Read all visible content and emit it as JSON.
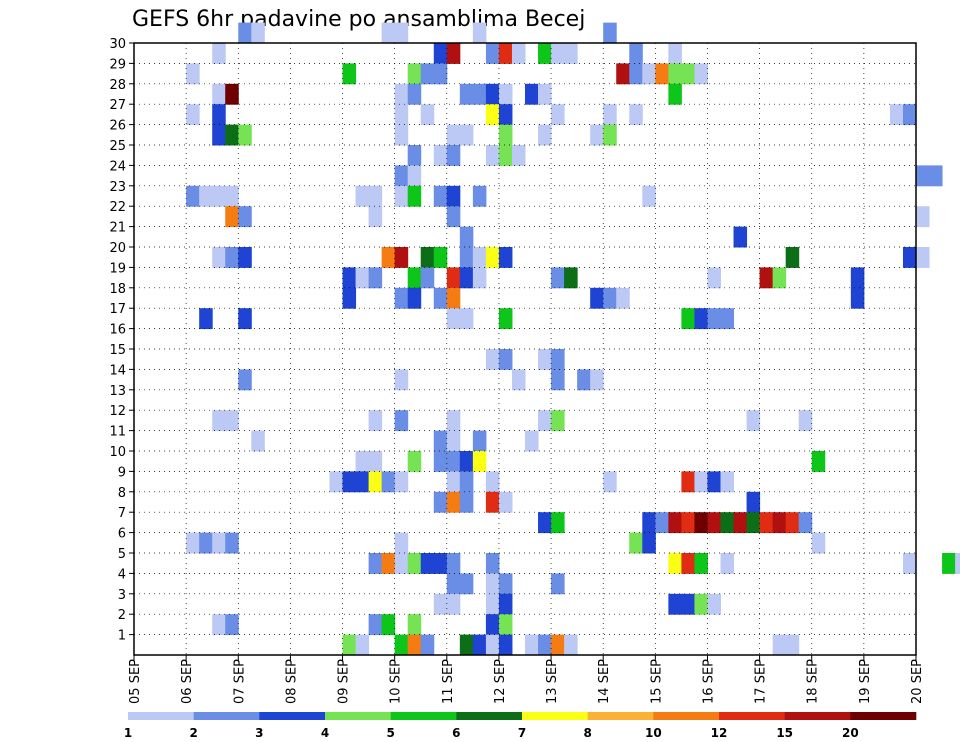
{
  "chart_data": {
    "type": "heatmap",
    "title": "GEFS 6hr padavine po ansamblima Becej",
    "y_ticks": [
      "1",
      "2",
      "3",
      "4",
      "5",
      "6",
      "7",
      "8",
      "9",
      "10",
      "11",
      "12",
      "13",
      "14",
      "15",
      "16",
      "17",
      "18",
      "19",
      "20",
      "21",
      "22",
      "23",
      "24",
      "25",
      "26",
      "27",
      "28",
      "29",
      "30"
    ],
    "x_ticks": [
      "05 SEP",
      "06 SEP",
      "07 SEP",
      "08 SEP",
      "09 SEP",
      "10 SEP",
      "11 SEP",
      "12 SEP",
      "13 SEP",
      "14 SEP",
      "15 SEP",
      "16 SEP",
      "17 SEP",
      "18 SEP",
      "19 SEP",
      "20 SEP"
    ],
    "legend": {
      "labels": [
        "1",
        "2",
        "3",
        "4",
        "5",
        "6",
        "7",
        "8",
        "10",
        "12",
        "15",
        "20"
      ],
      "colors": [
        "#bcc9f4",
        "#6a8ee6",
        "#1f44d4",
        "#76e354",
        "#0ec61a",
        "#0c6f18",
        "#fbff14",
        "#fbb131",
        "#f47c12",
        "#e02c12",
        "#b01010",
        "#6e0000"
      ]
    },
    "grid": true,
    "x_time_step_hours": 6,
    "cells": [
      [
        "07 SEP 00Z",
        30,
        2
      ],
      [
        "07 SEP 06Z",
        30,
        1
      ],
      [
        "09 SEP 18Z",
        30,
        1
      ],
      [
        "10 SEP 00Z",
        30,
        1
      ],
      [
        "11 SEP 12Z",
        30,
        1
      ],
      [
        "14 SEP 00Z",
        30,
        2
      ],
      [
        "06 SEP 12Z",
        29,
        1
      ],
      [
        "10 SEP 18Z",
        29,
        3
      ],
      [
        "11 SEP 00Z",
        29,
        15
      ],
      [
        "11 SEP 18Z",
        29,
        2
      ],
      [
        "12 SEP 00Z",
        29,
        12
      ],
      [
        "12 SEP 06Z",
        29,
        1
      ],
      [
        "12 SEP 18Z",
        29,
        5
      ],
      [
        "13 SEP 00Z",
        29,
        1
      ],
      [
        "13 SEP 06Z",
        29,
        1
      ],
      [
        "14 SEP 12Z",
        29,
        2
      ],
      [
        "15 SEP 06Z",
        29,
        1
      ],
      [
        "06 SEP 00Z",
        28,
        1
      ],
      [
        "09 SEP 00Z",
        28,
        5
      ],
      [
        "10 SEP 06Z",
        28,
        4
      ],
      [
        "10 SEP 12Z",
        28,
        2
      ],
      [
        "10 SEP 18Z",
        28,
        2
      ],
      [
        "14 SEP 06Z",
        28,
        15
      ],
      [
        "14 SEP 12Z",
        28,
        2
      ],
      [
        "14 SEP 18Z",
        28,
        1
      ],
      [
        "15 SEP 00Z",
        28,
        10
      ],
      [
        "15 SEP 06Z",
        28,
        4
      ],
      [
        "15 SEP 12Z",
        28,
        4
      ],
      [
        "15 SEP 18Z",
        28,
        1
      ],
      [
        "06 SEP 12Z",
        27,
        1
      ],
      [
        "06 SEP 18Z",
        27,
        20
      ],
      [
        "10 SEP 00Z",
        27,
        1
      ],
      [
        "10 SEP 06Z",
        27,
        2
      ],
      [
        "11 SEP 06Z",
        27,
        2
      ],
      [
        "11 SEP 12Z",
        27,
        2
      ],
      [
        "11 SEP 18Z",
        27,
        3
      ],
      [
        "12 SEP 00Z",
        27,
        1
      ],
      [
        "12 SEP 12Z",
        27,
        3
      ],
      [
        "12 SEP 18Z",
        27,
        1
      ],
      [
        "15 SEP 06Z",
        27,
        5
      ],
      [
        "06 SEP 00Z",
        26,
        1
      ],
      [
        "06 SEP 12Z",
        26,
        3
      ],
      [
        "10 SEP 00Z",
        26,
        1
      ],
      [
        "10 SEP 12Z",
        26,
        1
      ],
      [
        "11 SEP 18Z",
        26,
        7
      ],
      [
        "12 SEP 00Z",
        26,
        3
      ],
      [
        "13 SEP 00Z",
        26,
        1
      ],
      [
        "14 SEP 00Z",
        26,
        1
      ],
      [
        "14 SEP 12Z",
        26,
        1
      ],
      [
        "19 SEP 12Z",
        26,
        1
      ],
      [
        "19 SEP 18Z",
        26,
        2
      ],
      [
        "06 SEP 12Z",
        25,
        3
      ],
      [
        "06 SEP 18Z",
        25,
        6
      ],
      [
        "07 SEP 00Z",
        25,
        4
      ],
      [
        "10 SEP 00Z",
        25,
        1
      ],
      [
        "11 SEP 00Z",
        25,
        1
      ],
      [
        "11 SEP 06Z",
        25,
        1
      ],
      [
        "12 SEP 00Z",
        25,
        4
      ],
      [
        "12 SEP 18Z",
        25,
        1
      ],
      [
        "13 SEP 18Z",
        25,
        1
      ],
      [
        "14 SEP 00Z",
        25,
        4
      ],
      [
        "10 SEP 06Z",
        24,
        2
      ],
      [
        "10 SEP 18Z",
        24,
        1
      ],
      [
        "11 SEP 00Z",
        24,
        2
      ],
      [
        "11 SEP 18Z",
        24,
        1
      ],
      [
        "12 SEP 00Z",
        24,
        4
      ],
      [
        "12 SEP 06Z",
        24,
        1
      ],
      [
        "10 SEP 00Z",
        23,
        2
      ],
      [
        "10 SEP 06Z",
        23,
        1
      ],
      [
        "20 SEP 00Z",
        23,
        2
      ],
      [
        "20 SEP 06Z",
        23,
        2
      ],
      [
        "06 SEP 00Z",
        22,
        2
      ],
      [
        "06 SEP 06Z",
        22,
        1
      ],
      [
        "06 SEP 12Z",
        22,
        1
      ],
      [
        "06 SEP 18Z",
        22,
        1
      ],
      [
        "09 SEP 06Z",
        22,
        1
      ],
      [
        "09 SEP 12Z",
        22,
        1
      ],
      [
        "10 SEP 00Z",
        22,
        1
      ],
      [
        "10 SEP 06Z",
        22,
        5
      ],
      [
        "10 SEP 18Z",
        22,
        2
      ],
      [
        "11 SEP 00Z",
        22,
        3
      ],
      [
        "11 SEP 12Z",
        22,
        2
      ],
      [
        "14 SEP 18Z",
        22,
        1
      ],
      [
        "06 SEP 18Z",
        21,
        10
      ],
      [
        "07 SEP 00Z",
        21,
        2
      ],
      [
        "09 SEP 12Z",
        21,
        1
      ],
      [
        "11 SEP 00Z",
        21,
        2
      ],
      [
        "20 SEP 00Z",
        21,
        1
      ],
      [
        "11 SEP 06Z",
        20,
        2
      ],
      [
        "16 SEP 12Z",
        20,
        3
      ],
      [
        "06 SEP 12Z",
        19,
        1
      ],
      [
        "06 SEP 18Z",
        19,
        2
      ],
      [
        "07 SEP 00Z",
        19,
        3
      ],
      [
        "09 SEP 18Z",
        19,
        10
      ],
      [
        "10 SEP 00Z",
        19,
        15
      ],
      [
        "10 SEP 12Z",
        19,
        6
      ],
      [
        "10 SEP 18Z",
        19,
        5
      ],
      [
        "11 SEP 06Z",
        19,
        2
      ],
      [
        "11 SEP 12Z",
        19,
        1
      ],
      [
        "11 SEP 18Z",
        19,
        7
      ],
      [
        "12 SEP 00Z",
        19,
        3
      ],
      [
        "17 SEP 12Z",
        19,
        6
      ],
      [
        "19 SEP 18Z",
        19,
        3
      ],
      [
        "20 SEP 00Z",
        19,
        1
      ],
      [
        "09 SEP 00Z",
        18,
        3
      ],
      [
        "09 SEP 06Z",
        18,
        1
      ],
      [
        "09 SEP 12Z",
        18,
        2
      ],
      [
        "10 SEP 06Z",
        18,
        5
      ],
      [
        "10 SEP 12Z",
        18,
        2
      ],
      [
        "11 SEP 00Z",
        18,
        12
      ],
      [
        "11 SEP 06Z",
        18,
        3
      ],
      [
        "11 SEP 12Z",
        18,
        1
      ],
      [
        "13 SEP 00Z",
        18,
        2
      ],
      [
        "13 SEP 06Z",
        18,
        6
      ],
      [
        "16 SEP 00Z",
        18,
        1
      ],
      [
        "17 SEP 00Z",
        18,
        15
      ],
      [
        "17 SEP 06Z",
        18,
        4
      ],
      [
        "18 SEP 18Z",
        18,
        3
      ],
      [
        "09 SEP 00Z",
        17,
        3
      ],
      [
        "10 SEP 00Z",
        17,
        2
      ],
      [
        "10 SEP 06Z",
        17,
        3
      ],
      [
        "10 SEP 18Z",
        17,
        2
      ],
      [
        "11 SEP 00Z",
        17,
        10
      ],
      [
        "13 SEP 18Z",
        17,
        3
      ],
      [
        "14 SEP 00Z",
        17,
        2
      ],
      [
        "14 SEP 06Z",
        17,
        1
      ],
      [
        "18 SEP 18Z",
        17,
        3
      ],
      [
        "06 SEP 06Z",
        16,
        3
      ],
      [
        "07 SEP 00Z",
        16,
        3
      ],
      [
        "11 SEP 00Z",
        16,
        1
      ],
      [
        "11 SEP 06Z",
        16,
        1
      ],
      [
        "12 SEP 00Z",
        16,
        5
      ],
      [
        "15 SEP 12Z",
        16,
        5
      ],
      [
        "15 SEP 18Z",
        16,
        3
      ],
      [
        "16 SEP 00Z",
        16,
        2
      ],
      [
        "16 SEP 06Z",
        16,
        2
      ],
      [
        "11 SEP 18Z",
        14,
        1
      ],
      [
        "12 SEP 00Z",
        14,
        2
      ],
      [
        "12 SEP 18Z",
        14,
        1
      ],
      [
        "13 SEP 00Z",
        14,
        2
      ],
      [
        "07 SEP 00Z",
        13,
        2
      ],
      [
        "10 SEP 00Z",
        13,
        1
      ],
      [
        "12 SEP 06Z",
        13,
        1
      ],
      [
        "13 SEP 00Z",
        13,
        2
      ],
      [
        "13 SEP 12Z",
        13,
        2
      ],
      [
        "13 SEP 18Z",
        13,
        1
      ],
      [
        "06 SEP 12Z",
        11,
        1
      ],
      [
        "06 SEP 18Z",
        11,
        1
      ],
      [
        "09 SEP 12Z",
        11,
        1
      ],
      [
        "10 SEP 00Z",
        11,
        2
      ],
      [
        "11 SEP 00Z",
        11,
        1
      ],
      [
        "12 SEP 18Z",
        11,
        1
      ],
      [
        "13 SEP 00Z",
        11,
        4
      ],
      [
        "16 SEP 18Z",
        11,
        1
      ],
      [
        "17 SEP 18Z",
        11,
        1
      ],
      [
        "07 SEP 06Z",
        10,
        1
      ],
      [
        "10 SEP 18Z",
        10,
        2
      ],
      [
        "11 SEP 00Z",
        10,
        1
      ],
      [
        "11 SEP 12Z",
        10,
        2
      ],
      [
        "12 SEP 12Z",
        10,
        1
      ],
      [
        "09 SEP 06Z",
        9,
        1
      ],
      [
        "09 SEP 12Z",
        9,
        1
      ],
      [
        "10 SEP 06Z",
        9,
        4
      ],
      [
        "10 SEP 18Z",
        9,
        2
      ],
      [
        "11 SEP 00Z",
        9,
        2
      ],
      [
        "11 SEP 06Z",
        9,
        3
      ],
      [
        "11 SEP 12Z",
        9,
        7
      ],
      [
        "18 SEP 00Z",
        9,
        5
      ],
      [
        "08 SEP 18Z",
        8,
        1
      ],
      [
        "09 SEP 00Z",
        8,
        3
      ],
      [
        "09 SEP 06Z",
        8,
        3
      ],
      [
        "09 SEP 12Z",
        8,
        7
      ],
      [
        "09 SEP 18Z",
        8,
        2
      ],
      [
        "10 SEP 00Z",
        8,
        1
      ],
      [
        "11 SEP 00Z",
        8,
        1
      ],
      [
        "11 SEP 06Z",
        8,
        2
      ],
      [
        "11 SEP 18Z",
        8,
        1
      ],
      [
        "14 SEP 00Z",
        8,
        1
      ],
      [
        "15 SEP 12Z",
        8,
        12
      ],
      [
        "15 SEP 18Z",
        8,
        1
      ],
      [
        "16 SEP 00Z",
        8,
        3
      ],
      [
        "16 SEP 06Z",
        8,
        1
      ],
      [
        "10 SEP 18Z",
        7,
        2
      ],
      [
        "11 SEP 00Z",
        7,
        10
      ],
      [
        "11 SEP 06Z",
        7,
        2
      ],
      [
        "11 SEP 18Z",
        7,
        12
      ],
      [
        "12 SEP 00Z",
        7,
        1
      ],
      [
        "16 SEP 18Z",
        7,
        3
      ],
      [
        "12 SEP 18Z",
        6,
        3
      ],
      [
        "13 SEP 00Z",
        6,
        5
      ],
      [
        "14 SEP 18Z",
        6,
        3
      ],
      [
        "15 SEP 00Z",
        6,
        2
      ],
      [
        "15 SEP 06Z",
        6,
        15
      ],
      [
        "15 SEP 12Z",
        6,
        12
      ],
      [
        "15 SEP 18Z",
        6,
        20
      ],
      [
        "16 SEP 00Z",
        6,
        15
      ],
      [
        "16 SEP 06Z",
        6,
        6
      ],
      [
        "16 SEP 12Z",
        6,
        15
      ],
      [
        "16 SEP 18Z",
        6,
        6
      ],
      [
        "17 SEP 00Z",
        6,
        12
      ],
      [
        "17 SEP 06Z",
        6,
        15
      ],
      [
        "17 SEP 12Z",
        6,
        12
      ],
      [
        "17 SEP 18Z",
        6,
        2
      ],
      [
        "06 SEP 00Z",
        5,
        1
      ],
      [
        "06 SEP 06Z",
        5,
        2
      ],
      [
        "06 SEP 12Z",
        5,
        1
      ],
      [
        "06 SEP 18Z",
        5,
        2
      ],
      [
        "10 SEP 00Z",
        5,
        1
      ],
      [
        "14 SEP 12Z",
        5,
        4
      ],
      [
        "14 SEP 18Z",
        5,
        3
      ],
      [
        "18 SEP 00Z",
        5,
        1
      ],
      [
        "09 SEP 12Z",
        4,
        2
      ],
      [
        "09 SEP 18Z",
        4,
        10
      ],
      [
        "10 SEP 00Z",
        4,
        1
      ],
      [
        "10 SEP 06Z",
        4,
        4
      ],
      [
        "10 SEP 12Z",
        4,
        3
      ],
      [
        "10 SEP 18Z",
        4,
        3
      ],
      [
        "11 SEP 00Z",
        4,
        2
      ],
      [
        "11 SEP 18Z",
        4,
        2
      ],
      [
        "15 SEP 06Z",
        4,
        7
      ],
      [
        "15 SEP 12Z",
        4,
        12
      ],
      [
        "15 SEP 18Z",
        4,
        5
      ],
      [
        "16 SEP 06Z",
        4,
        1
      ],
      [
        "19 SEP 18Z",
        4,
        1
      ],
      [
        "20 SEP 12Z",
        4,
        5
      ],
      [
        "20 SEP 18Z",
        4,
        1
      ],
      [
        "11 SEP 00Z",
        3,
        2
      ],
      [
        "11 SEP 06Z",
        3,
        2
      ],
      [
        "11 SEP 18Z",
        3,
        1
      ],
      [
        "12 SEP 00Z",
        3,
        2
      ],
      [
        "13 SEP 00Z",
        3,
        2
      ],
      [
        "10 SEP 18Z",
        2,
        1
      ],
      [
        "11 SEP 00Z",
        2,
        1
      ],
      [
        "11 SEP 18Z",
        2,
        1
      ],
      [
        "12 SEP 00Z",
        2,
        3
      ],
      [
        "15 SEP 06Z",
        2,
        3
      ],
      [
        "15 SEP 12Z",
        2,
        3
      ],
      [
        "15 SEP 18Z",
        2,
        4
      ],
      [
        "16 SEP 00Z",
        2,
        1
      ],
      [
        "06 SEP 12Z",
        1,
        1
      ],
      [
        "06 SEP 18Z",
        1,
        2
      ],
      [
        "09 SEP 12Z",
        1,
        2
      ],
      [
        "09 SEP 18Z",
        1,
        5
      ],
      [
        "10 SEP 06Z",
        1,
        4
      ],
      [
        "11 SEP 18Z",
        1,
        3
      ],
      [
        "12 SEP 00Z",
        1,
        4
      ],
      [
        "09 SEP 00Z",
        0,
        4
      ],
      [
        "09 SEP 06Z",
        0,
        1
      ],
      [
        "10 SEP 00Z",
        0,
        5
      ],
      [
        "10 SEP 06Z",
        0,
        10
      ],
      [
        "10 SEP 12Z",
        0,
        2
      ],
      [
        "11 SEP 06Z",
        0,
        6
      ],
      [
        "11 SEP 12Z",
        0,
        3
      ],
      [
        "11 SEP 18Z",
        0,
        1
      ],
      [
        "12 SEP 00Z",
        0,
        3
      ],
      [
        "12 SEP 12Z",
        0,
        1
      ],
      [
        "12 SEP 18Z",
        0,
        2
      ],
      [
        "13 SEP 00Z",
        0,
        10
      ],
      [
        "13 SEP 06Z",
        0,
        1
      ],
      [
        "17 SEP 06Z",
        0,
        1
      ],
      [
        "17 SEP 12Z",
        0,
        1
      ]
    ]
  }
}
